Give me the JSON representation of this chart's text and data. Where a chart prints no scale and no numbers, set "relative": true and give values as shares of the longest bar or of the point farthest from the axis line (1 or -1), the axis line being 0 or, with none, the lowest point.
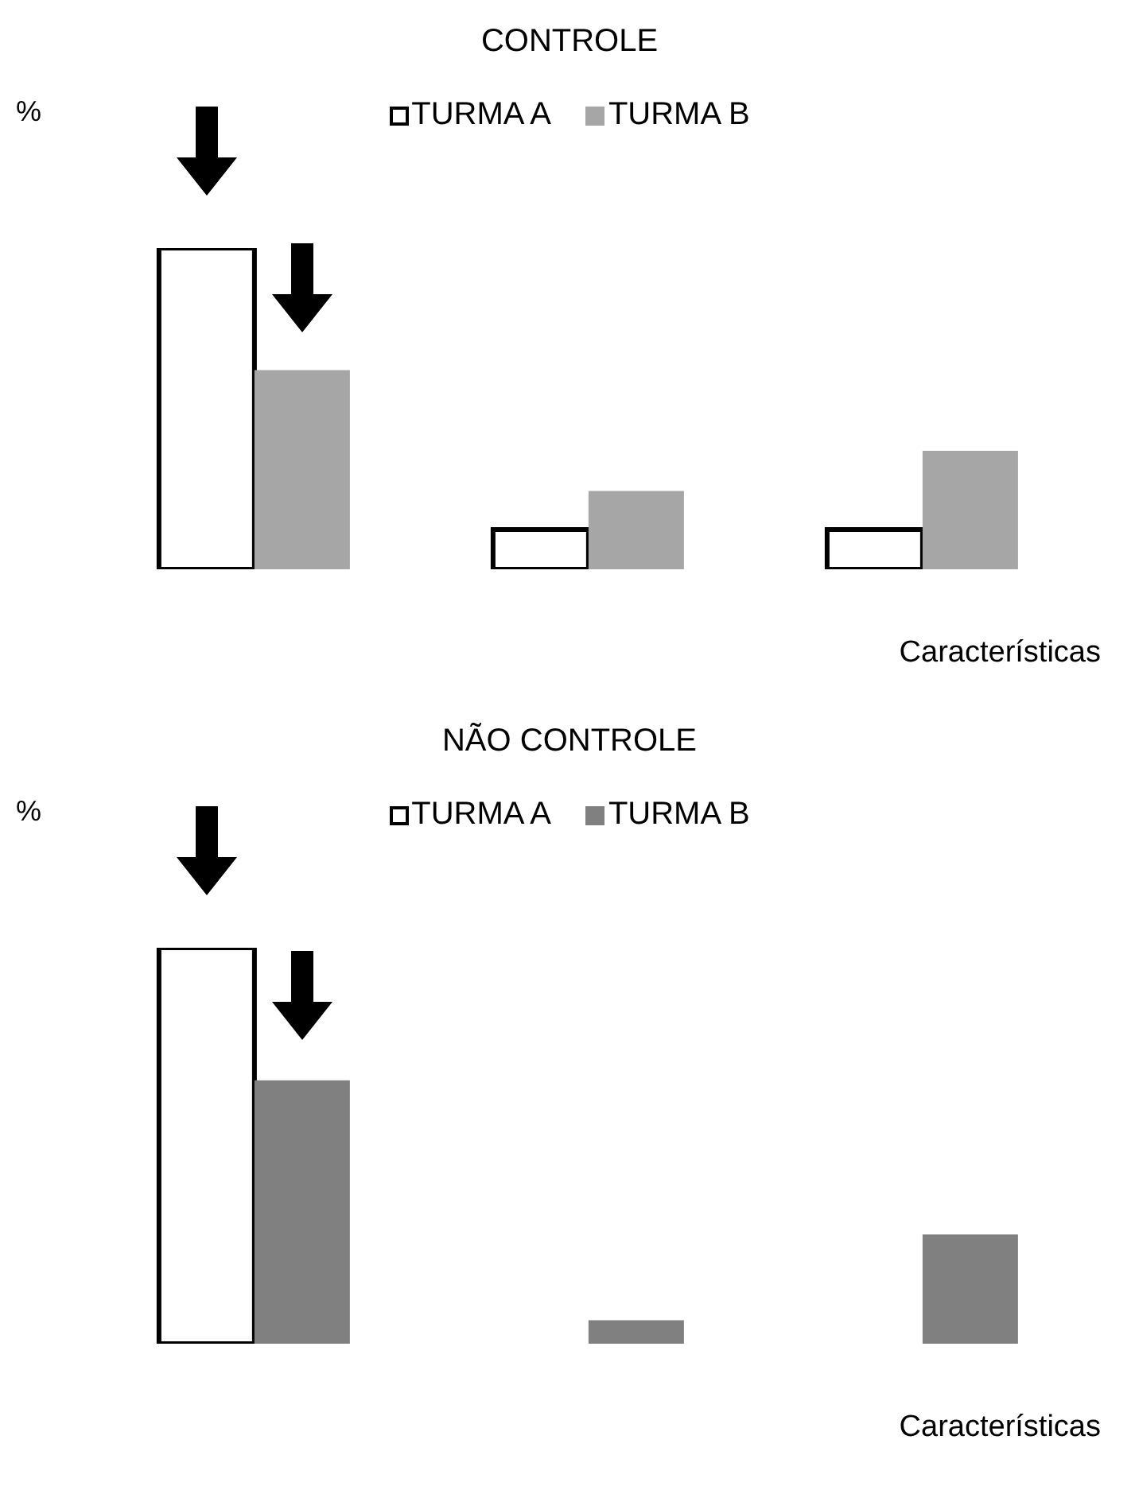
{
  "chart_data": [
    {
      "type": "bar",
      "title": "CONTROLE",
      "xlabel": "Características",
      "ylabel": "%",
      "relative": true,
      "legend": "top",
      "categories": [
        null,
        null,
        null
      ],
      "series": [
        {
          "name": "TURMA A",
          "color": "#ffffff",
          "values": [
            1,
            0.124,
            0.124
          ]
        },
        {
          "name": "TURMA B",
          "color": "#a6a6a6",
          "values": [
            0.62,
            0.244,
            0.369
          ]
        }
      ]
    },
    {
      "type": "bar",
      "title": "NÃO CONTROLE",
      "xlabel": "Características",
      "ylabel": "%",
      "relative": true,
      "legend": "top",
      "categories": [
        null,
        null,
        null
      ],
      "series": [
        {
          "name": "TURMA A",
          "color": "#ffffff",
          "values": [
            1,
            0,
            0
          ]
        },
        {
          "name": "TURMA B",
          "color": "#808080",
          "values": [
            0.665,
            0.059,
            0.276
          ]
        }
      ]
    }
  ]
}
